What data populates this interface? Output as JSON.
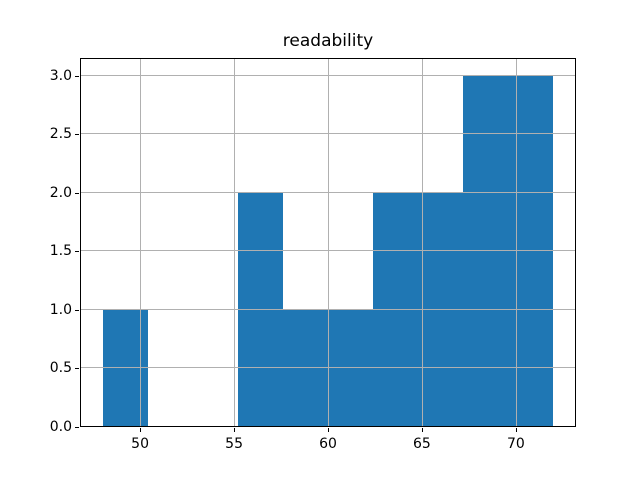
{
  "chart_data": {
    "type": "bar",
    "subtype": "histogram",
    "title": "readability",
    "xlabel": "",
    "ylabel": "",
    "bin_edges": [
      48.0,
      50.4,
      52.8,
      55.2,
      57.6,
      60.0,
      62.4,
      64.8,
      67.2,
      69.6,
      72.0
    ],
    "counts": [
      1,
      0,
      0,
      2,
      1,
      1,
      2,
      2,
      3,
      3
    ],
    "xlim": [
      46.8,
      73.2
    ],
    "ylim": [
      0,
      3.15
    ],
    "xticks": [
      50,
      55,
      60,
      65,
      70
    ],
    "xtick_labels": [
      "50",
      "55",
      "60",
      "65",
      "70"
    ],
    "yticks": [
      0,
      0.5,
      1,
      1.5,
      2,
      2.5,
      3
    ],
    "ytick_labels": [
      "0.0",
      "0.5",
      "1.0",
      "1.5",
      "2.0",
      "2.5",
      "3.0"
    ],
    "grid": true,
    "grid_above_bars": true,
    "legend_position": "none",
    "bar_color": "#1f77b4",
    "grid_color": "#b0b0b0",
    "axis_color": "#000000",
    "background_color": "#ffffff"
  }
}
